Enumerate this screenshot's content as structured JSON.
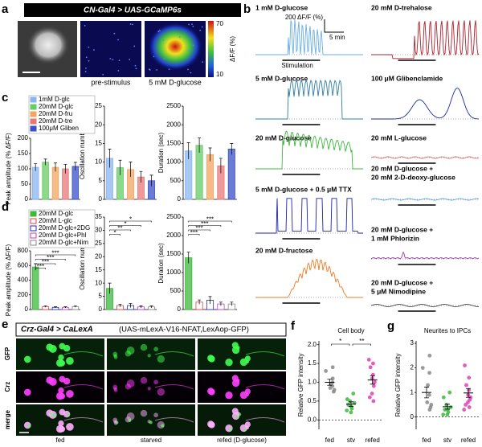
{
  "panel_letters": [
    "a",
    "b",
    "c",
    "d",
    "e",
    "f",
    "g"
  ],
  "panel_a": {
    "title": "CN-Gal4 > UAS-GCaMP6s",
    "image_labels": [
      "pre-stimulus",
      "5 mM D-glucose"
    ],
    "colorbar": {
      "label": "ΔF/F (%)",
      "max": 70,
      "min": 10
    }
  },
  "panel_b": {
    "scale_y": "200 ΔF/F (%)",
    "scale_x": "5 min",
    "stimulation": "Stimulation",
    "traces": [
      {
        "label": [
          "1 mM D-glucose"
        ],
        "color": "#6aaee8"
      },
      {
        "label": [
          "5 mM D-glucose"
        ],
        "color": "#2f7fa0"
      },
      {
        "label": [
          "20 mM D-glucose"
        ],
        "color": "#3cb83c"
      },
      {
        "label": [
          "5 mM D-glucose + 0.5 μM TTX"
        ],
        "color": "#1a22b0"
      },
      {
        "label": [
          "20 mM D-fructose"
        ],
        "color": "#f07a20"
      },
      {
        "label": [
          "20 mM D-trehalose"
        ],
        "color": "#b0202a"
      },
      {
        "label": [
          "100 μM Glibenclamide"
        ],
        "color": "#1a2aa0"
      },
      {
        "label": [
          "20 mM L-glucose"
        ],
        "color": "#e06a6a"
      },
      {
        "label": [
          "20 mM D-glucose +",
          "20 mM 2-D-deoxy-glucose"
        ],
        "color": "#5aa0e0"
      },
      {
        "label": [
          "20 mM D-glucose +",
          "1 mM Phlorizin"
        ],
        "color": "#9a3ab0"
      },
      {
        "label": [
          "20 mM D-glucose +",
          "5 μM Nimodipine"
        ],
        "color": "#444444"
      }
    ]
  },
  "panel_c": {
    "legend": [
      "1mM D-glc",
      "20mM D-glc",
      "20mM D-fru",
      "20mM D-tre",
      "100μM Gliben"
    ],
    "colors": [
      "#8ab4f0",
      "#66cc66",
      "#f4a460",
      "#e87878",
      "#3a50c8"
    ],
    "charts": [
      {
        "type": "bar",
        "ylabel": "Peak amplitude (% ΔF/F)",
        "values": [
          105,
          122,
          105,
          100,
          108
        ],
        "errors": [
          12,
          10,
          14,
          15,
          13
        ],
        "ylim": [
          0,
          200
        ],
        "yticks": [
          0,
          50,
          100,
          150,
          200
        ]
      },
      {
        "type": "bar",
        "ylabel": "Oscillation number",
        "values": [
          11,
          8.5,
          8,
          6,
          5
        ],
        "errors": [
          2.5,
          2,
          2,
          1.5,
          1.5
        ],
        "ylim": [
          0,
          25
        ],
        "yticks": [
          0,
          5,
          10,
          15,
          20,
          25
        ]
      },
      {
        "type": "bar",
        "ylabel": "Duration (sec)",
        "values": [
          1300,
          1450,
          1200,
          900,
          1350
        ],
        "errors": [
          220,
          200,
          180,
          200,
          150
        ],
        "ylim": [
          0,
          2500
        ],
        "yticks": [
          0,
          500,
          1000,
          1500,
          2000,
          2500
        ]
      }
    ]
  },
  "panel_d": {
    "legend": [
      "20mM D-glc",
      "20mM L-glc",
      "20mM D-glc+2DG",
      "20mM D-glc+Phl",
      "20mM D-glc+Nim"
    ],
    "colors": [
      "#3cb83c",
      "#e04040",
      "#2030b0",
      "#c040c0",
      "#888888"
    ],
    "filled": [
      true,
      false,
      false,
      false,
      false
    ],
    "charts": [
      {
        "type": "bar",
        "ylabel": "Peak amplitude (% ΔF/F)",
        "values": [
          580,
          40,
          30,
          30,
          40
        ],
        "errors": [
          45,
          10,
          8,
          8,
          10
        ],
        "ylim": [
          0,
          800
        ],
        "yticks": [
          0,
          200,
          400,
          600,
          800
        ],
        "significance": [
          "***",
          "***",
          "***",
          "***"
        ]
      },
      {
        "type": "bar",
        "ylabel": "Oscillation number",
        "values": [
          8,
          1.5,
          1.5,
          1,
          1
        ],
        "errors": [
          2,
          0.5,
          0.8,
          0.4,
          0.4
        ],
        "ylim": [
          0,
          35
        ],
        "yticks": [
          0,
          5,
          10,
          15,
          20,
          25,
          30,
          35
        ],
        "significance": [
          "*",
          "**",
          "*",
          "*"
        ]
      },
      {
        "type": "bar",
        "ylabel": "Duration (sec)",
        "values": [
          1400,
          200,
          250,
          150,
          150
        ],
        "errors": [
          150,
          60,
          100,
          50,
          50
        ],
        "ylim": [
          0,
          2500
        ],
        "yticks": [
          0,
          500,
          1000,
          1500,
          2000,
          2500
        ],
        "significance": [
          "***",
          "***",
          "***",
          "***"
        ]
      }
    ]
  },
  "panel_e": {
    "title": "Crz-Gal4 > CaLexA",
    "subtitle": "(UAS-mLexA-V16-NFAT,LexAop-GFP)",
    "rows": [
      "GFP",
      "Crz",
      "merge"
    ],
    "columns": [
      "fed",
      "starved",
      "refed (D-glucose)"
    ]
  },
  "panel_f": {
    "type": "dotplot",
    "title": "Cell body",
    "ylabel": "Relative GFP intensity",
    "categories": [
      "fed",
      "stv",
      "refed"
    ],
    "colors": [
      "#888888",
      "#3cb83c",
      "#e040b0"
    ],
    "values": [
      1.0,
      0.42,
      1.06
    ],
    "errors": [
      0.08,
      0.06,
      0.11
    ],
    "points": [
      [
        1.4,
        1.3,
        1.0,
        0.95,
        0.9,
        0.85,
        0.8,
        0.75,
        1.1
      ],
      [
        0.7,
        0.55,
        0.5,
        0.45,
        0.4,
        0.35,
        0.3,
        0.2,
        0.25
      ],
      [
        1.6,
        1.5,
        1.4,
        1.2,
        1.1,
        1.0,
        0.9,
        0.7,
        0.6,
        0.5
      ]
    ],
    "ylim": [
      -0.25,
      2.1
    ],
    "yticks": [
      {
        "value": 0,
        "label": "0.0"
      },
      {
        "value": 0.5,
        "label": "0.5"
      },
      {
        "value": 1,
        "label": "1.0"
      },
      {
        "value": 1.5,
        "label": "1.5"
      },
      {
        "value": 2,
        "label": "2.0"
      }
    ],
    "significance": [
      "*",
      "**"
    ]
  },
  "panel_g": {
    "type": "dotplot",
    "title": "Neurites to IPCs",
    "ylabel": "Relative GFP intensity",
    "categories": [
      "fed",
      "stv",
      "refed"
    ],
    "colors": [
      "#888888",
      "#3cb83c",
      "#e040b0"
    ],
    "values": [
      1.0,
      0.42,
      0.98
    ],
    "errors": [
      0.22,
      0.1,
      0.18
    ],
    "points": [
      [
        2.5,
        2.0,
        1.8,
        1.3,
        0.9,
        0.6,
        0.5,
        0.4,
        0.3
      ],
      [
        1.0,
        0.8,
        0.5,
        0.4,
        0.3,
        0.3,
        0.2,
        0.1,
        0.1
      ],
      [
        2.1,
        1.6,
        1.3,
        1.1,
        0.9,
        0.8,
        0.7,
        0.6,
        0.5,
        0.4,
        0.3
      ]
    ],
    "ylim": [
      -0.5,
      3.1
    ],
    "yticks": [
      0,
      1,
      2,
      3
    ]
  }
}
